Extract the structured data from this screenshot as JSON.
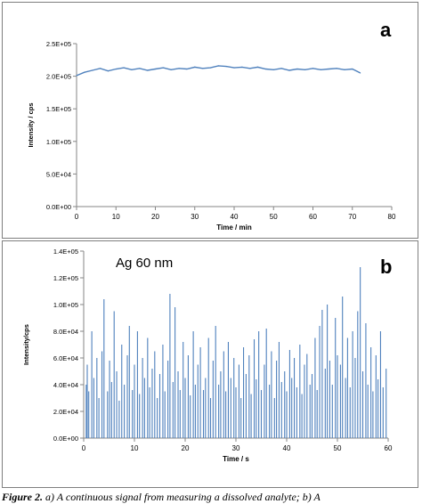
{
  "chart_data": [
    {
      "type": "line",
      "panel_label": "a",
      "title": "",
      "xlabel": "Time / min",
      "ylabel": "Intensity / cps",
      "xlim": [
        0,
        80
      ],
      "ylim": [
        0,
        250000
      ],
      "x_ticks": [
        "0",
        "10",
        "20",
        "30",
        "40",
        "50",
        "60",
        "70",
        "80"
      ],
      "y_ticks": [
        "0.0E+00",
        "5.0E+04",
        "1.0E+05",
        "1.5E+05",
        "2.0E+05",
        "2.5E+05"
      ],
      "grid": false,
      "series": [
        {
          "color": "#4f81bd",
          "x": [
            0,
            2,
            4,
            6,
            8,
            10,
            12,
            14,
            16,
            18,
            20,
            22,
            24,
            26,
            28,
            30,
            32,
            34,
            36,
            38,
            40,
            42,
            44,
            46,
            48,
            50,
            52,
            54,
            56,
            58,
            60,
            62,
            64,
            66,
            68,
            70,
            72
          ],
          "y": [
            201000,
            206000,
            209000,
            212000,
            208000,
            211000,
            213000,
            210000,
            212000,
            209000,
            211000,
            213000,
            210000,
            212000,
            211000,
            214000,
            212000,
            213000,
            216000,
            215000,
            213000,
            214000,
            212000,
            214000,
            211000,
            210000,
            212000,
            209000,
            211000,
            210000,
            212000,
            210000,
            211000,
            212000,
            210000,
            211000,
            205000
          ]
        }
      ]
    },
    {
      "type": "bar",
      "panel_label": "b",
      "annotation": "Ag 60 nm",
      "title": "",
      "xlabel": "Time / s",
      "ylabel": "Intensity/cps",
      "xlim": [
        0,
        60
      ],
      "ylim": [
        0,
        140000
      ],
      "x_ticks": [
        "0",
        "10",
        "20",
        "30",
        "40",
        "50",
        "60"
      ],
      "y_ticks": [
        "0.0E+00",
        "2.0E+04",
        "4.0E+04",
        "6.0E+04",
        "8.0E+04",
        "1.0E+05",
        "1.2E+05",
        "1.4E+05"
      ],
      "grid": false,
      "series": [
        {
          "color": "#4f81bd",
          "x": [
            0.5,
            0.7,
            1.0,
            1.6,
            2.0,
            2.6,
            3.0,
            3.6,
            4.0,
            4.7,
            5.1,
            5.5,
            6.0,
            6.5,
            7.0,
            7.5,
            8.0,
            8.6,
            9.0,
            9.6,
            10.0,
            10.6,
            11.0,
            11.6,
            12.0,
            12.6,
            13.0,
            13.5,
            14.0,
            14.5,
            15.0,
            15.6,
            16.0,
            16.6,
            17.0,
            17.6,
            18.0,
            18.6,
            19.0,
            19.6,
            20.0,
            20.6,
            21.0,
            21.6,
            22.0,
            22.5,
            23.0,
            23.6,
            24.0,
            24.6,
            25.0,
            25.5,
            26.0,
            26.6,
            27.0,
            27.6,
            28.0,
            28.5,
            29.0,
            29.6,
            30.0,
            30.6,
            31.0,
            31.5,
            32.0,
            32.6,
            33.0,
            33.6,
            34.0,
            34.5,
            35.0,
            35.6,
            36.0,
            36.6,
            37.0,
            37.6,
            38.0,
            38.5,
            39.0,
            39.6,
            40.0,
            40.6,
            41.0,
            41.5,
            42.0,
            42.6,
            43.0,
            43.5,
            44.0,
            44.6,
            45.0,
            45.6,
            46.0,
            46.5,
            47.0,
            47.6,
            48.0,
            48.5,
            49.0,
            49.6,
            50.0,
            50.6,
            51.0,
            51.6,
            52.0,
            52.5,
            53.0,
            53.5,
            54.0,
            54.5,
            55.0,
            55.6,
            56.0,
            56.6,
            57.0,
            57.6,
            58.0,
            58.5,
            59.0,
            59.6
          ],
          "y": [
            40000,
            55000,
            35000,
            80000,
            45000,
            60000,
            30000,
            65000,
            104000,
            35000,
            58000,
            42000,
            95000,
            50000,
            28000,
            70000,
            40000,
            62000,
            84000,
            36000,
            55000,
            80000,
            33000,
            60000,
            45000,
            75000,
            38000,
            52000,
            65000,
            30000,
            48000,
            70000,
            35000,
            58000,
            108000,
            42000,
            98000,
            50000,
            36000,
            72000,
            45000,
            62000,
            32000,
            80000,
            40000,
            55000,
            68000,
            36000,
            45000,
            75000,
            30000,
            58000,
            84000,
            40000,
            50000,
            65000,
            35000,
            72000,
            45000,
            60000,
            38000,
            55000,
            30000,
            68000,
            48000,
            62000,
            33000,
            74000,
            44000,
            80000,
            36000,
            55000,
            82000,
            40000,
            65000,
            30000,
            58000,
            72000,
            42000,
            50000,
            35000,
            66000,
            45000,
            60000,
            38000,
            70000,
            33000,
            55000,
            63000,
            40000,
            48000,
            75000,
            36000,
            84000,
            96000,
            52000,
            100000,
            58000,
            40000,
            90000,
            62000,
            55000,
            106000,
            45000,
            75000,
            38000,
            80000,
            60000,
            95000,
            128000,
            50000,
            86000,
            40000,
            68000,
            35000,
            62000,
            44000,
            80000,
            38000,
            52000
          ]
        }
      ]
    }
  ],
  "caption": {
    "prefix": "Figure 2.",
    "text": " a) A continuous signal from measuring a dissolved analyte; b) A"
  }
}
